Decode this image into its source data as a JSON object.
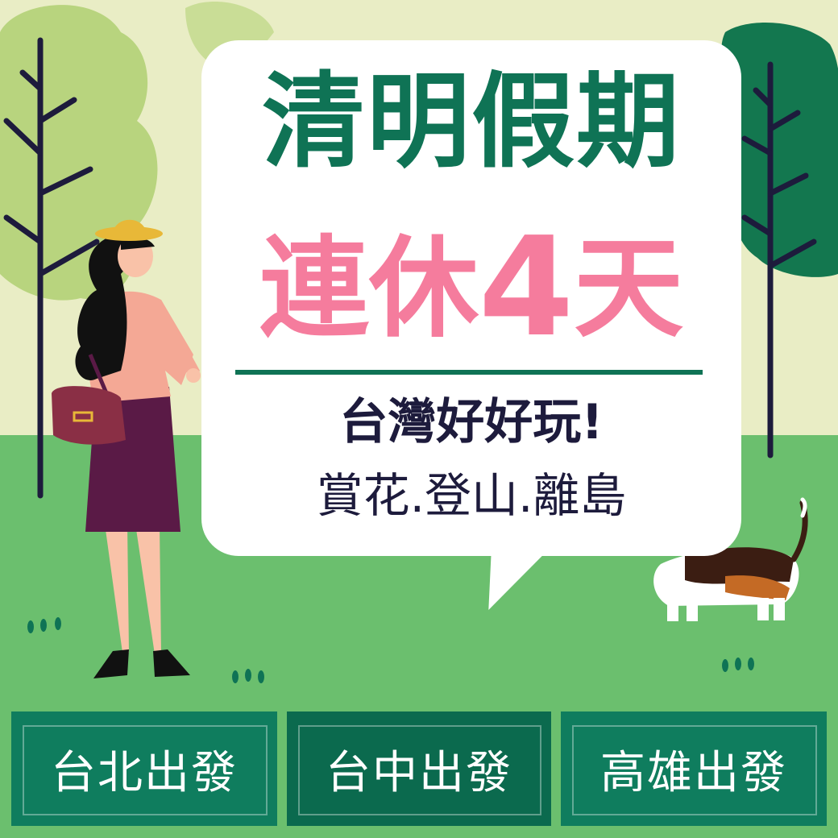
{
  "headline": {
    "line1": "清明假期",
    "line2_prefix": "連休",
    "line2_number": "4",
    "line2_suffix": "天"
  },
  "tagline": "台灣好好玩!",
  "activities": "賞花.登山.離島",
  "departures": [
    {
      "label": "台北出發"
    },
    {
      "label": "台中出發"
    },
    {
      "label": "高雄出發"
    }
  ],
  "colors": {
    "sky": "#e9edc5",
    "grass": "#6bbf6e",
    "dark_green": "#0f7355",
    "pink": "#f57c9d",
    "navy": "#1d1b3c"
  }
}
